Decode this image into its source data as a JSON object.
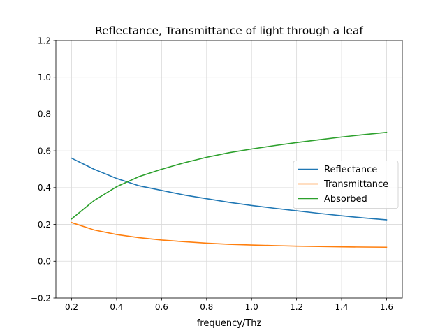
{
  "chart_data": {
    "type": "line",
    "title": "Reflectance, Transmittance of light through a leaf",
    "xlabel": "frequency/Thz",
    "ylabel": "",
    "xlim": [
      0.13,
      1.67
    ],
    "ylim": [
      -0.2,
      1.2
    ],
    "xticks": [
      0.2,
      0.4,
      0.6,
      0.8,
      1.0,
      1.2,
      1.4,
      1.6
    ],
    "xtick_labels": [
      "0.2",
      "0.4",
      "0.6",
      "0.8",
      "1.0",
      "1.2",
      "1.4",
      "1.6"
    ],
    "yticks": [
      -0.2,
      0.0,
      0.2,
      0.4,
      0.6,
      0.8,
      1.0,
      1.2
    ],
    "ytick_labels": [
      "−0.2",
      "0.0",
      "0.2",
      "0.4",
      "0.6",
      "0.8",
      "1.0",
      "1.2"
    ],
    "grid": true,
    "legend_position": "center-right",
    "x": [
      0.2,
      0.3,
      0.4,
      0.5,
      0.6,
      0.7,
      0.8,
      0.9,
      1.0,
      1.1,
      1.2,
      1.3,
      1.4,
      1.5,
      1.6
    ],
    "series": [
      {
        "name": "Reflectance",
        "color": "#1f77b4",
        "values": [
          0.56,
          0.5,
          0.45,
          0.41,
          0.385,
          0.36,
          0.34,
          0.32,
          0.303,
          0.288,
          0.274,
          0.26,
          0.247,
          0.235,
          0.225
        ]
      },
      {
        "name": "Transmittance",
        "color": "#ff7f0e",
        "values": [
          0.21,
          0.17,
          0.145,
          0.128,
          0.115,
          0.106,
          0.098,
          0.092,
          0.088,
          0.085,
          0.082,
          0.08,
          0.078,
          0.077,
          0.076
        ]
      },
      {
        "name": "Absorbed",
        "color": "#2ca02c",
        "values": [
          0.23,
          0.33,
          0.405,
          0.46,
          0.5,
          0.535,
          0.565,
          0.59,
          0.61,
          0.628,
          0.645,
          0.66,
          0.675,
          0.688,
          0.7
        ]
      }
    ]
  }
}
